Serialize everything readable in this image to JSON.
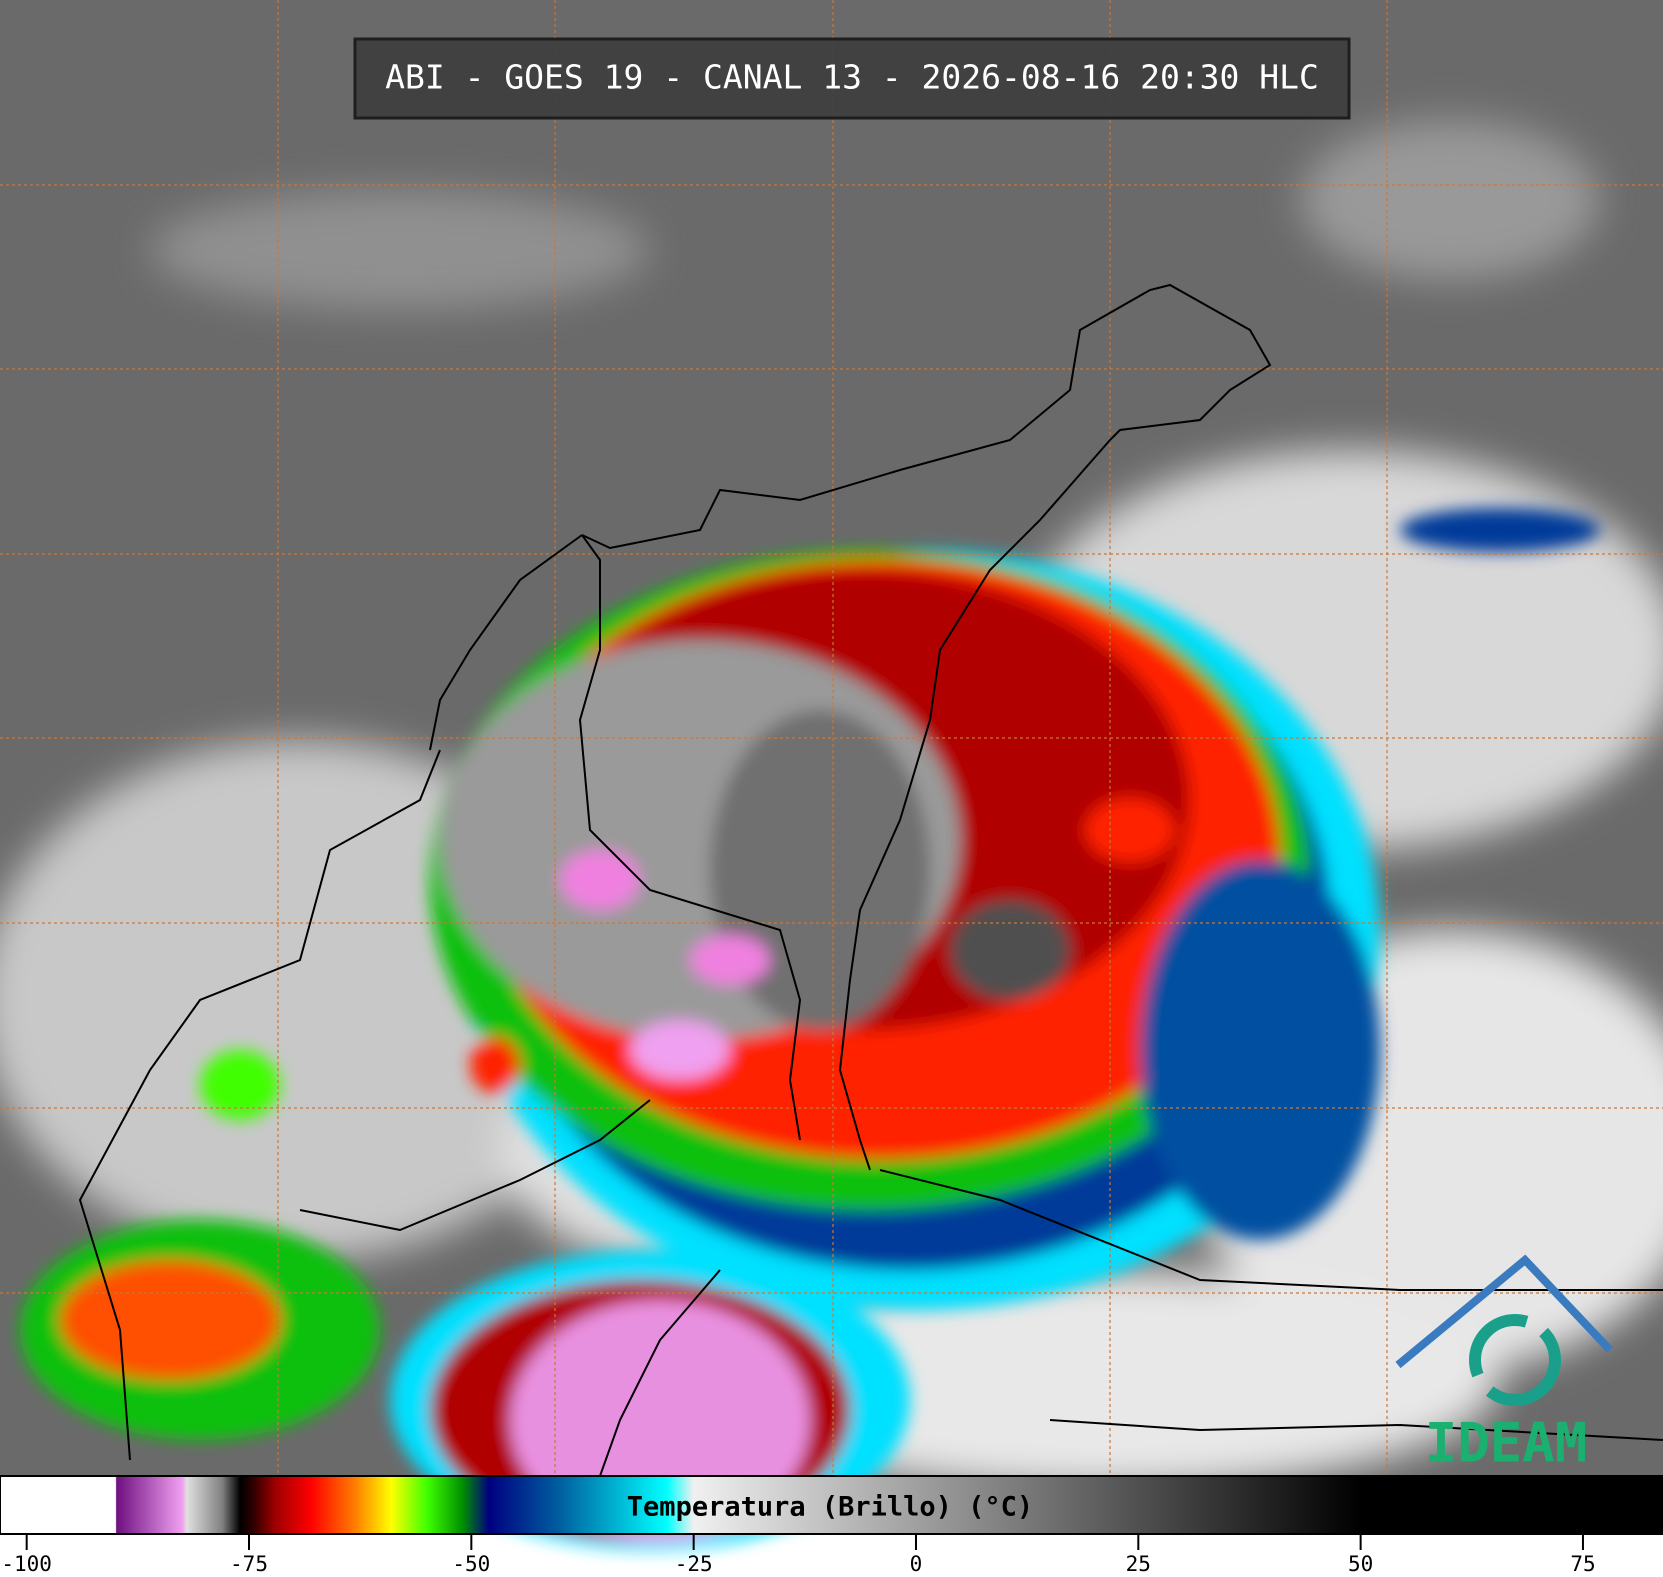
{
  "header": {
    "title": "ABI - GOES 19 - CANAL 13 - 2026-08-16 20:30 HLC"
  },
  "colorbar": {
    "label": "Temperatura (Brillo) (°C)",
    "xlim": [
      -103,
      84
    ],
    "xticks": [
      -100,
      -75,
      -50,
      -25,
      0,
      25,
      50,
      75
    ],
    "stops": [
      {
        "value": -103,
        "color": "#ffffff"
      },
      {
        "value": -90,
        "color": "#ffffff"
      },
      {
        "value": -89.9,
        "color": "#6e1080"
      },
      {
        "value": -82.5,
        "color": "#f0a0f0"
      },
      {
        "value": -82,
        "color": "#e0e0e0"
      },
      {
        "value": -78,
        "color": "#808080"
      },
      {
        "value": -76,
        "color": "#000000"
      },
      {
        "value": -74.5,
        "color": "#300000"
      },
      {
        "value": -72,
        "color": "#a00000"
      },
      {
        "value": -68,
        "color": "#ff0000"
      },
      {
        "value": -63,
        "color": "#ff8000"
      },
      {
        "value": -59,
        "color": "#ffff00"
      },
      {
        "value": -55,
        "color": "#40ff00"
      },
      {
        "value": -51,
        "color": "#009000"
      },
      {
        "value": -48,
        "color": "#000080"
      },
      {
        "value": -40,
        "color": "#0060a0"
      },
      {
        "value": -28,
        "color": "#00ffff"
      },
      {
        "value": -25,
        "color": "#f0f0f0"
      },
      {
        "value": 0,
        "color": "#a0a0a0"
      },
      {
        "value": 25,
        "color": "#505050"
      },
      {
        "value": 50,
        "color": "#000000"
      },
      {
        "value": 84,
        "color": "#000000"
      }
    ]
  },
  "logo": {
    "text": "IDEAM"
  }
}
